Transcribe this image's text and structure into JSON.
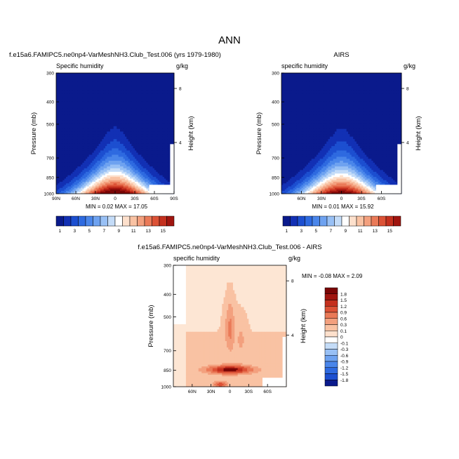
{
  "figure_title": "ANN",
  "color_scale_colors": [
    "#0a1a8c",
    "#1230b4",
    "#1c4fd0",
    "#2e6ae0",
    "#4a86ea",
    "#6ea2f0",
    "#98c0f5",
    "#c4dcf8",
    "#ffffff",
    "#fde0cc",
    "#f9c2a3",
    "#f3a07e",
    "#ea7a58",
    "#dc5236",
    "#c4301e",
    "#a0150f",
    "#7a0606"
  ],
  "chart_data": [
    {
      "type": "heatmap",
      "id": "panel-model",
      "header": "f.e15a6.FAMIPC5.ne0np4-VarMeshNH3.Club_Test.006 (yrs 1979-1980)",
      "left_label": "Specific humidity",
      "right_label": "g/kg",
      "ylabel": "Pressure (mb)",
      "y2label": "Height (km)",
      "yticks": [
        "300",
        "400",
        "500",
        "700",
        "850",
        "1000"
      ],
      "ytick_values": [
        300,
        400,
        500,
        700,
        850,
        1000
      ],
      "y2ticks": [
        "8",
        "4"
      ],
      "y2tick_values": [
        350,
        600
      ],
      "xticks": [
        "90N",
        "60N",
        "30N",
        "0",
        "30S",
        "60S",
        "90S"
      ],
      "xtick_values": [
        -90,
        -60,
        -30,
        0,
        30,
        60,
        90
      ],
      "xlim": [
        -90,
        90
      ],
      "ylim": [
        300,
        1000
      ],
      "stats": "MIN =  0.02  MAX = 17.05",
      "min": 0.02,
      "max": 17.05,
      "contour_levels": [
        1,
        2,
        3,
        4,
        5,
        6,
        7,
        8,
        9,
        10,
        11,
        12,
        13,
        14,
        15,
        16
      ],
      "colorbar_labels": [
        "1",
        "3",
        "5",
        "7",
        "9",
        "11",
        "13",
        "15"
      ],
      "colorbar_label_indices": [
        0,
        2,
        4,
        6,
        8,
        10,
        12,
        14
      ]
    },
    {
      "type": "heatmap",
      "id": "panel-obs",
      "header": "AIRS",
      "left_label": "specific humidity",
      "right_label": "g/kg",
      "ylabel": "Pressure (mb)",
      "y2label": "Height (km)",
      "yticks": [
        "300",
        "400",
        "500",
        "700",
        "850",
        "1000"
      ],
      "ytick_values": [
        300,
        400,
        500,
        700,
        850,
        1000
      ],
      "y2ticks": [
        "8",
        "4"
      ],
      "y2tick_values": [
        350,
        600
      ],
      "xticks": [
        "60N",
        "30N",
        "0",
        "30S",
        "60S"
      ],
      "xtick_values": [
        -60,
        -30,
        0,
        30,
        60
      ],
      "xlim": [
        -90,
        90
      ],
      "ylim": [
        300,
        1000
      ],
      "stats": "MIN =  0.01  MAX = 15.92",
      "min": 0.01,
      "max": 15.92,
      "contour_levels": [
        1,
        2,
        3,
        4,
        5,
        6,
        7,
        8,
        9,
        10,
        11,
        12,
        13,
        14,
        15,
        16
      ],
      "colorbar_labels": [
        "1",
        "3",
        "5",
        "7",
        "9",
        "11",
        "13",
        "15"
      ],
      "colorbar_label_indices": [
        0,
        2,
        4,
        6,
        8,
        10,
        12,
        14
      ]
    },
    {
      "type": "heatmap",
      "id": "panel-diff",
      "header": "f.e15a6.FAMIPC5.ne0np4-VarMeshNH3.Club_Test.006 - AIRS",
      "left_label": "specific humidity",
      "right_label": "g/kg",
      "ylabel": "Pressure (mb)",
      "y2label": "Height (km)",
      "yticks": [
        "300",
        "400",
        "500",
        "700",
        "850",
        "1000"
      ],
      "ytick_values": [
        300,
        400,
        500,
        700,
        850,
        1000
      ],
      "y2ticks": [
        "8",
        "4"
      ],
      "y2tick_values": [
        350,
        600
      ],
      "xticks": [
        "60N",
        "30N",
        "0",
        "30S",
        "60S"
      ],
      "xtick_values": [
        -60,
        -30,
        0,
        30,
        60
      ],
      "xlim": [
        -90,
        90
      ],
      "ylim": [
        300,
        1000
      ],
      "stats": "MIN = -0.08  MAX =  2.09",
      "min": -0.08,
      "max": 2.09,
      "contour_levels": [
        -1.8,
        -1.5,
        -1.2,
        -0.9,
        -0.6,
        -0.3,
        -0.1,
        0,
        0.1,
        0.3,
        0.6,
        0.9,
        1.2,
        1.5,
        1.8
      ],
      "colorbar_labels": [
        "1.8",
        "1.5",
        "1.2",
        "0.9",
        "0.6",
        "0.3",
        "0.1",
        "0",
        "-0.1",
        "-0.3",
        "-0.6",
        "-0.9",
        "-1.2",
        "-1.5",
        "-1.8"
      ]
    }
  ]
}
